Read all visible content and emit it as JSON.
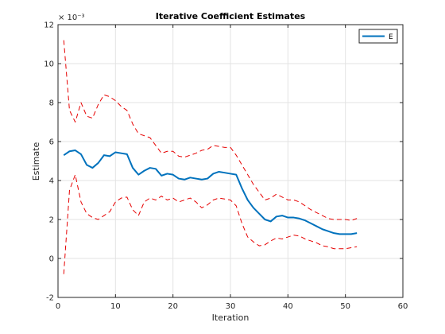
{
  "chart_data": {
    "type": "line",
    "title": "Iterative Coefficient Estimates",
    "xlabel": "Iteration",
    "ylabel": "Estimate",
    "exponent_label": "× 10⁻³",
    "xlim": [
      0,
      60
    ],
    "ylim": [
      -2,
      12
    ],
    "xticks": [
      0,
      10,
      20,
      30,
      40,
      50,
      60
    ],
    "yticks": [
      -2,
      0,
      2,
      4,
      6,
      8,
      10,
      12
    ],
    "grid": true,
    "legend_position": "top-right",
    "series": [
      {
        "name": "E",
        "style": "solid",
        "color": "#0072BD",
        "x": [
          1,
          2,
          3,
          4,
          5,
          6,
          7,
          8,
          9,
          10,
          11,
          12,
          13,
          14,
          15,
          16,
          17,
          18,
          19,
          20,
          21,
          22,
          23,
          24,
          25,
          26,
          27,
          28,
          29,
          30,
          31,
          32,
          33,
          34,
          35,
          36,
          37,
          38,
          39,
          40,
          41,
          42,
          43,
          44,
          45,
          46,
          47,
          48,
          49,
          50,
          51,
          52
        ],
        "values": [
          5.3,
          5.5,
          5.55,
          5.35,
          4.8,
          4.65,
          4.9,
          5.3,
          5.25,
          5.45,
          5.4,
          5.35,
          4.65,
          4.3,
          4.5,
          4.65,
          4.6,
          4.25,
          4.35,
          4.3,
          4.1,
          4.05,
          4.15,
          4.1,
          4.05,
          4.1,
          4.35,
          4.45,
          4.4,
          4.35,
          4.3,
          3.6,
          3.0,
          2.6,
          2.3,
          2.0,
          1.9,
          2.15,
          2.2,
          2.1,
          2.1,
          2.05,
          1.95,
          1.8,
          1.65,
          1.5,
          1.4,
          1.3,
          1.25,
          1.25,
          1.25,
          1.3
        ]
      },
      {
        "style": "dashed",
        "color": "#D95319",
        "x": [
          1,
          2,
          3,
          4,
          5,
          6,
          7,
          8,
          9,
          10,
          11,
          12,
          13,
          14,
          15,
          16,
          17,
          18,
          19,
          20,
          21,
          22,
          23,
          24,
          25,
          26,
          27,
          28,
          29,
          30,
          31,
          32,
          33,
          34,
          35,
          36,
          37,
          38,
          39,
          40,
          41,
          42,
          43,
          44,
          45,
          46,
          47,
          48,
          49,
          50,
          51,
          52
        ],
        "values": [
          11.2,
          7.6,
          7.0,
          8.0,
          7.3,
          7.2,
          7.9,
          8.4,
          8.3,
          8.1,
          7.8,
          7.6,
          6.9,
          6.4,
          6.3,
          6.2,
          5.8,
          5.4,
          5.5,
          5.5,
          5.25,
          5.2,
          5.3,
          5.4,
          5.55,
          5.6,
          5.8,
          5.75,
          5.7,
          5.7,
          5.3,
          4.8,
          4.3,
          3.8,
          3.4,
          3.0,
          3.1,
          3.3,
          3.15,
          3.0,
          3.0,
          2.9,
          2.7,
          2.5,
          2.35,
          2.2,
          2.05,
          2.0,
          2.0,
          2.0,
          1.95,
          2.05
        ]
      },
      {
        "style": "dashed",
        "color": "#D95319",
        "x": [
          1,
          2,
          3,
          4,
          5,
          6,
          7,
          8,
          9,
          10,
          11,
          12,
          13,
          14,
          15,
          16,
          17,
          18,
          19,
          20,
          21,
          22,
          23,
          24,
          25,
          26,
          27,
          28,
          29,
          30,
          31,
          32,
          33,
          34,
          35,
          36,
          37,
          38,
          39,
          40,
          41,
          42,
          43,
          44,
          45,
          46,
          47,
          48,
          49,
          50,
          51,
          52
        ],
        "values": [
          -0.8,
          3.5,
          4.3,
          2.9,
          2.3,
          2.1,
          2.0,
          2.2,
          2.4,
          2.9,
          3.1,
          3.15,
          2.5,
          2.2,
          2.9,
          3.1,
          3.0,
          3.2,
          3.0,
          3.1,
          2.9,
          3.0,
          3.1,
          2.9,
          2.6,
          2.75,
          3.0,
          3.1,
          3.05,
          3.0,
          2.7,
          1.8,
          1.1,
          0.85,
          0.65,
          0.7,
          0.9,
          1.05,
          1.0,
          1.1,
          1.2,
          1.15,
          1.0,
          0.9,
          0.8,
          0.65,
          0.6,
          0.5,
          0.5,
          0.5,
          0.55,
          0.6
        ]
      }
    ]
  }
}
